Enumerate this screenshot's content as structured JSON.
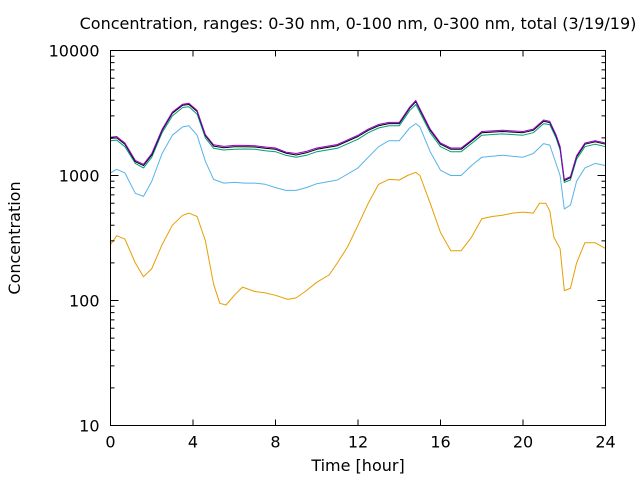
{
  "chart_data": {
    "type": "line",
    "title": "Concentration, ranges: 0-30 nm, 0-100 nm, 0-300 nm, total (3/19/19)",
    "xlabel": "Time [hour]",
    "ylabel": "Concentration",
    "xlim": [
      0,
      24
    ],
    "ylim": [
      10,
      10000
    ],
    "yscale": "log",
    "grid": false,
    "legend": "none",
    "x_ticks": [
      "0",
      "4",
      "8",
      "12",
      "16",
      "20",
      "24"
    ],
    "y_ticks": [
      "10",
      "100",
      "1000",
      "10000"
    ],
    "series": [
      {
        "color": "#e69f00",
        "x": [
          0,
          0.3,
          0.7,
          1.2,
          1.6,
          2.0,
          2.5,
          3.0,
          3.5,
          3.8,
          4.2,
          4.6,
          5.0,
          5.3,
          5.6,
          6.0,
          6.4,
          7.0,
          7.5,
          8.0,
          8.6,
          9.0,
          9.5,
          10.0,
          10.6,
          11.0,
          11.5,
          12.0,
          12.5,
          13.0,
          13.5,
          14.0,
          14.4,
          14.8,
          15.0,
          15.5,
          16.0,
          16.5,
          17.0,
          17.5,
          18.0,
          18.5,
          19.0,
          19.5,
          20.0,
          20.5,
          20.8,
          21.1,
          21.3,
          21.5,
          21.8,
          22.0,
          22.3,
          22.6,
          23.0,
          23.5,
          24.0
        ],
        "y": [
          280,
          330,
          310,
          200,
          155,
          180,
          280,
          400,
          480,
          500,
          470,
          300,
          135,
          95,
          92,
          110,
          128,
          118,
          115,
          110,
          102,
          105,
          120,
          140,
          160,
          200,
          270,
          400,
          600,
          850,
          930,
          920,
          1000,
          1060,
          1000,
          600,
          350,
          250,
          250,
          320,
          450,
          470,
          480,
          500,
          510,
          500,
          600,
          600,
          520,
          320,
          260,
          120,
          125,
          200,
          290,
          290,
          260
        ]
      },
      {
        "color": "#56b4e9",
        "x": [
          0,
          0.3,
          0.7,
          1.2,
          1.6,
          2.0,
          2.5,
          3.0,
          3.5,
          3.8,
          4.2,
          4.6,
          5.0,
          5.5,
          6.0,
          6.5,
          7.0,
          7.5,
          8.0,
          8.5,
          9.0,
          9.5,
          10.0,
          11.0,
          12.0,
          12.5,
          13.0,
          13.5,
          14.0,
          14.5,
          14.8,
          15.0,
          15.5,
          16.0,
          16.5,
          17.0,
          17.5,
          18.0,
          19.0,
          20.0,
          20.5,
          21.0,
          21.3,
          21.6,
          21.8,
          22.0,
          22.3,
          22.6,
          23.0,
          23.5,
          24.0
        ],
        "y": [
          1050,
          1120,
          1050,
          720,
          680,
          900,
          1500,
          2100,
          2450,
          2500,
          2100,
          1300,
          930,
          870,
          880,
          870,
          870,
          850,
          800,
          760,
          760,
          800,
          860,
          920,
          1150,
          1400,
          1700,
          1900,
          1900,
          2400,
          2600,
          2450,
          1550,
          1100,
          1000,
          1000,
          1200,
          1400,
          1450,
          1400,
          1500,
          1800,
          1750,
          1250,
          1000,
          540,
          580,
          900,
          1150,
          1250,
          1200
        ]
      },
      {
        "color": "#009e73",
        "x": [
          0,
          0.3,
          0.7,
          1.2,
          1.6,
          2.0,
          2.5,
          3.0,
          3.5,
          3.8,
          4.2,
          4.6,
          5.0,
          5.5,
          6.0,
          6.5,
          7.0,
          7.5,
          8.0,
          8.5,
          9.0,
          9.5,
          10.0,
          11.0,
          12.0,
          12.5,
          13.0,
          13.5,
          14.0,
          14.5,
          14.8,
          15.0,
          15.5,
          16.0,
          16.5,
          17.0,
          17.5,
          18.0,
          19.0,
          20.0,
          20.5,
          21.0,
          21.3,
          21.6,
          21.8,
          22.0,
          22.3,
          22.6,
          23.0,
          23.5,
          24.0
        ],
        "y": [
          1900,
          1920,
          1700,
          1250,
          1150,
          1400,
          2200,
          3000,
          3500,
          3550,
          3100,
          2000,
          1650,
          1600,
          1620,
          1630,
          1620,
          1580,
          1550,
          1450,
          1400,
          1450,
          1550,
          1650,
          1950,
          2200,
          2400,
          2500,
          2500,
          3300,
          3700,
          3200,
          2200,
          1700,
          1550,
          1550,
          1800,
          2100,
          2150,
          2100,
          2200,
          2600,
          2550,
          2000,
          1600,
          880,
          920,
          1350,
          1700,
          1780,
          1700
        ]
      },
      {
        "color": "#000000",
        "x": [
          0,
          0.3,
          0.7,
          1.2,
          1.6,
          2.0,
          2.5,
          3.0,
          3.5,
          3.8,
          4.2,
          4.6,
          5.0,
          5.5,
          6.0,
          6.5,
          7.0,
          7.5,
          8.0,
          8.5,
          9.0,
          9.5,
          10.0,
          11.0,
          12.0,
          12.5,
          13.0,
          13.5,
          14.0,
          14.5,
          14.8,
          15.0,
          15.5,
          16.0,
          16.5,
          17.0,
          17.5,
          18.0,
          19.0,
          20.0,
          20.5,
          21.0,
          21.3,
          21.6,
          21.8,
          22.0,
          22.3,
          22.6,
          23.0,
          23.5,
          24.0
        ],
        "y": [
          1980,
          2000,
          1780,
          1290,
          1200,
          1460,
          2290,
          3150,
          3650,
          3700,
          3250,
          2080,
          1720,
          1670,
          1700,
          1700,
          1690,
          1650,
          1620,
          1510,
          1460,
          1520,
          1620,
          1730,
          2050,
          2300,
          2500,
          2600,
          2600,
          3450,
          3900,
          3350,
          2300,
          1780,
          1620,
          1620,
          1880,
          2200,
          2250,
          2200,
          2300,
          2720,
          2650,
          2080,
          1670,
          910,
          960,
          1410,
          1780,
          1860,
          1780
        ]
      },
      {
        "color": "#9400d3",
        "x": [
          0,
          0.3,
          0.7,
          1.2,
          1.6,
          2.0,
          2.5,
          3.0,
          3.5,
          3.8,
          4.2,
          4.6,
          5.0,
          5.5,
          6.0,
          6.5,
          7.0,
          7.5,
          8.0,
          8.5,
          9.0,
          9.5,
          10.0,
          11.0,
          12.0,
          12.5,
          13.0,
          13.5,
          14.0,
          14.5,
          14.8,
          15.0,
          15.5,
          16.0,
          16.5,
          17.0,
          17.5,
          18.0,
          19.0,
          20.0,
          20.5,
          21.0,
          21.3,
          21.6,
          21.8,
          22.0,
          22.3,
          22.6,
          23.0,
          23.5,
          24.0
        ],
        "y": [
          2020,
          2050,
          1820,
          1320,
          1230,
          1500,
          2340,
          3220,
          3720,
          3780,
          3320,
          2120,
          1760,
          1710,
          1740,
          1740,
          1730,
          1690,
          1660,
          1540,
          1500,
          1560,
          1660,
          1770,
          2100,
          2350,
          2560,
          2660,
          2660,
          3520,
          3980,
          3420,
          2350,
          1820,
          1660,
          1660,
          1920,
          2250,
          2300,
          2250,
          2350,
          2780,
          2710,
          2120,
          1710,
          930,
          980,
          1440,
          1820,
          1900,
          1820
        ]
      }
    ]
  }
}
